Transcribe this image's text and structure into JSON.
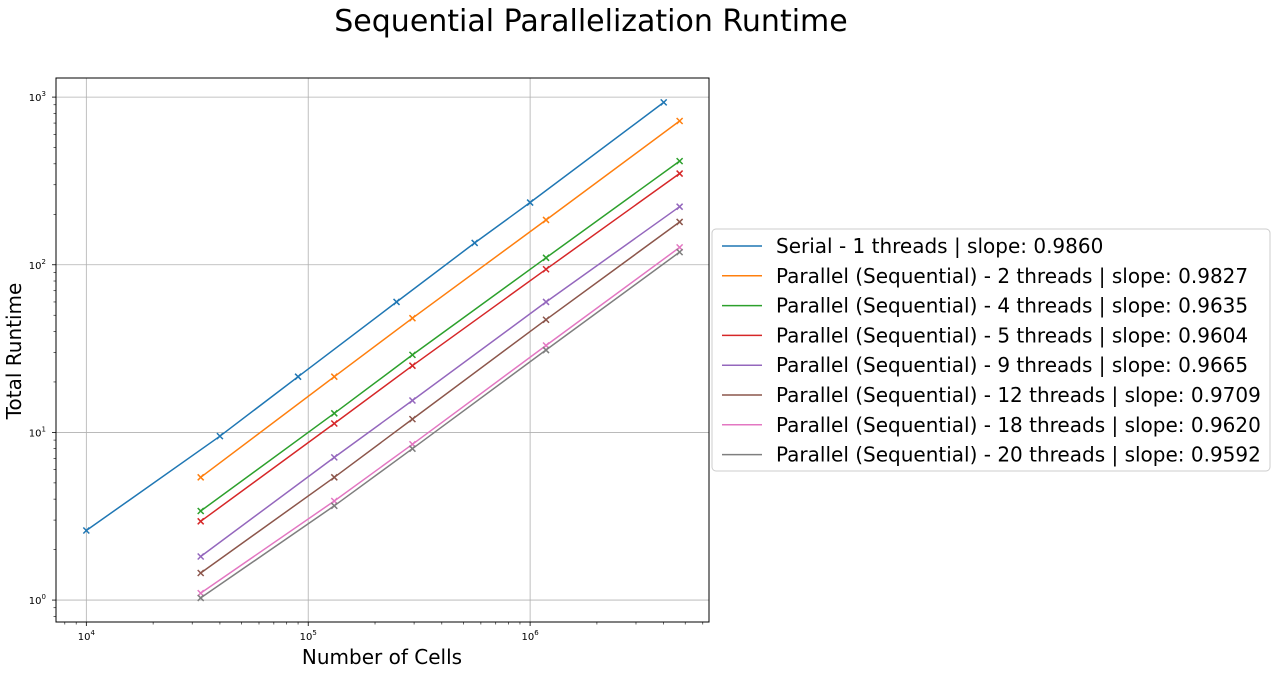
{
  "chart_data": {
    "type": "line",
    "title": "Sequential Parallelization Runtime",
    "xlabel": "Number of Cells",
    "ylabel": "Total Runtime",
    "xscale": "log",
    "yscale": "log",
    "xlim": [
      7300,
      6400000
    ],
    "ylim": [
      0.74,
      1300
    ],
    "grid": true,
    "legend_placement": "outside-right",
    "marker": "x",
    "x_ticks": [
      {
        "value": 10000,
        "base": "10",
        "exp": "4"
      },
      {
        "value": 100000,
        "base": "10",
        "exp": "5"
      },
      {
        "value": 1000000,
        "base": "10",
        "exp": "6"
      }
    ],
    "y_ticks": [
      {
        "value": 1,
        "base": "10",
        "exp": "0"
      },
      {
        "value": 10,
        "base": "10",
        "exp": "1"
      },
      {
        "value": 100,
        "base": "10",
        "exp": "2"
      },
      {
        "value": 1000,
        "base": "10",
        "exp": "3"
      }
    ],
    "series": [
      {
        "name": "Serial - 1 threads | slope: 0.9860",
        "color": "#1f77b4",
        "x": [
          10000,
          40000,
          90000,
          250000,
          562500,
          1000000,
          4000000
        ],
        "y": [
          2.6,
          9.5,
          21.5,
          60,
          135,
          235,
          930
        ]
      },
      {
        "name": "Parallel (Sequential) - 2 threads | slope: 0.9827",
        "color": "#ff7f0e",
        "x": [
          32768,
          131072,
          294912,
          1179648,
          4718592
        ],
        "y": [
          5.4,
          21.5,
          48,
          185,
          720
        ]
      },
      {
        "name": "Parallel (Sequential) - 4 threads | slope: 0.9635",
        "color": "#2ca02c",
        "x": [
          32768,
          131072,
          294912,
          1179648,
          4718592
        ],
        "y": [
          3.4,
          13,
          29,
          110,
          415
        ]
      },
      {
        "name": "Parallel (Sequential) - 5 threads | slope: 0.9604",
        "color": "#d62728",
        "x": [
          32768,
          131072,
          294912,
          1179648,
          4718592
        ],
        "y": [
          2.95,
          11.3,
          25,
          94,
          350
        ]
      },
      {
        "name": "Parallel (Sequential) - 9 threads | slope: 0.9665",
        "color": "#9467bd",
        "x": [
          32768,
          131072,
          294912,
          1179648,
          4718592
        ],
        "y": [
          1.82,
          7.1,
          15.5,
          60,
          222
        ]
      },
      {
        "name": "Parallel (Sequential) - 12 threads | slope: 0.9709",
        "color": "#8c564b",
        "x": [
          32768,
          131072,
          294912,
          1179648,
          4718592
        ],
        "y": [
          1.45,
          5.4,
          12,
          47,
          180
        ]
      },
      {
        "name": "Parallel (Sequential) - 18 threads | slope: 0.9620",
        "color": "#e377c2",
        "x": [
          32768,
          131072,
          294912,
          1179648,
          4718592
        ],
        "y": [
          1.1,
          3.9,
          8.5,
          33,
          127
        ]
      },
      {
        "name": "Parallel (Sequential) - 20 threads | slope: 0.9592",
        "color": "#7f7f7f",
        "x": [
          32768,
          131072,
          294912,
          1179648,
          4718592
        ],
        "y": [
          1.03,
          3.65,
          8.0,
          31,
          119
        ]
      }
    ]
  }
}
